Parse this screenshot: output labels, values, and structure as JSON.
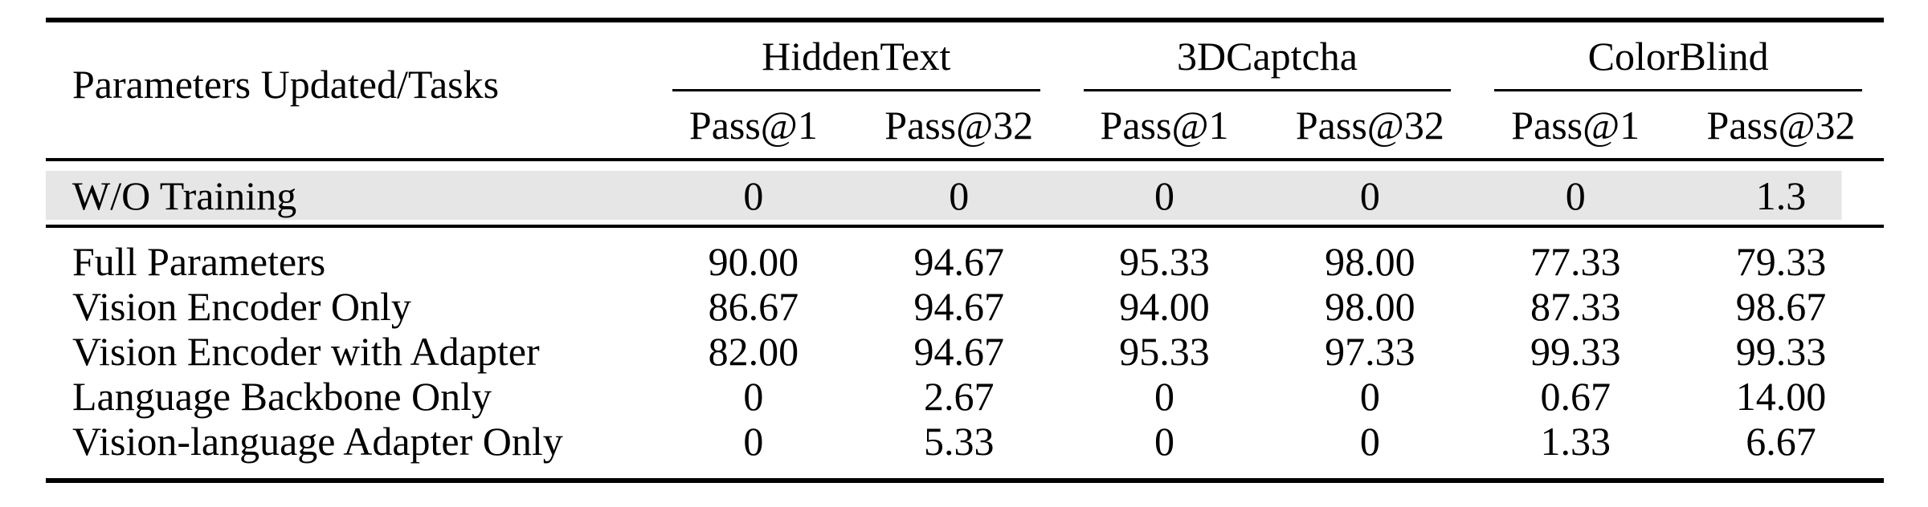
{
  "table": {
    "corner_header": "Parameters Updated/Tasks",
    "groups": [
      {
        "label": "HiddenText",
        "sub1": "Pass@1",
        "sub2": "Pass@32"
      },
      {
        "label": "3DCaptcha",
        "sub1": "Pass@1",
        "sub2": "Pass@32"
      },
      {
        "label": "ColorBlind",
        "sub1": "Pass@1",
        "sub2": "Pass@32"
      }
    ],
    "baseline_row": {
      "label": "W/O Training",
      "values": [
        "0",
        "0",
        "0",
        "0",
        "0",
        "1.3"
      ]
    },
    "rows": [
      {
        "label": "Full Parameters",
        "values": [
          "90.00",
          "94.67",
          "95.33",
          "98.00",
          "77.33",
          "79.33"
        ]
      },
      {
        "label": "Vision Encoder Only",
        "values": [
          "86.67",
          "94.67",
          "94.00",
          "98.00",
          "87.33",
          "98.67"
        ]
      },
      {
        "label": "Vision Encoder with Adapter",
        "values": [
          "82.00",
          "94.67",
          "95.33",
          "97.33",
          "99.33",
          "99.33"
        ]
      },
      {
        "label": "Language Backbone Only",
        "values": [
          "0",
          "2.67",
          "0",
          "0",
          "0.67",
          "14.00"
        ]
      },
      {
        "label": "Vision-language Adapter Only",
        "values": [
          "0",
          "5.33",
          "0",
          "0",
          "1.33",
          "6.67"
        ]
      }
    ],
    "colors": {
      "highlight_row_bg": "#e6e6e6",
      "rule": "#000000",
      "text": "#000000",
      "page_bg": "#ffffff"
    }
  }
}
